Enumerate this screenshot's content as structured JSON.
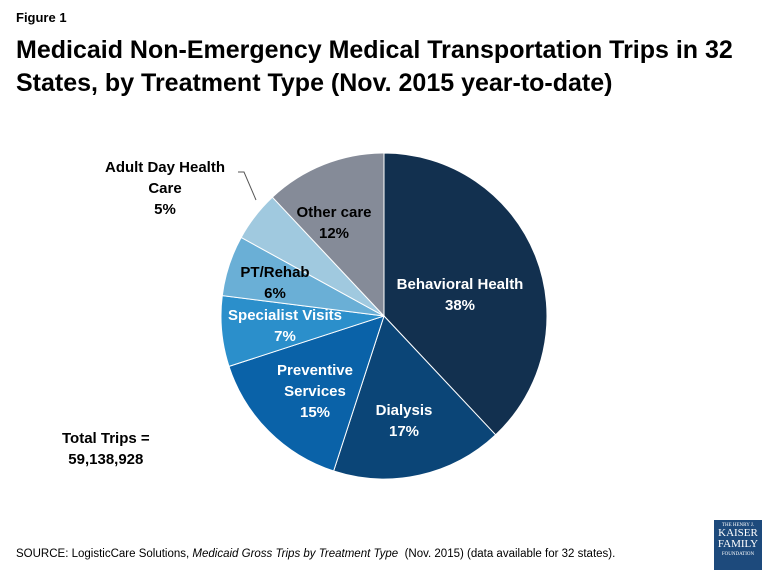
{
  "figure_label": "Figure 1",
  "title": "Medicaid Non-Emergency Medical Transportation Trips in 32 States, by Treatment Type (Nov. 2015 year-to-date)",
  "chart_data": {
    "type": "pie",
    "start": "12 o'clock, clockwise",
    "slices": [
      {
        "name": "Behavioral Health",
        "value": 38,
        "label": "38%",
        "color": "#12304f"
      },
      {
        "name": "Dialysis",
        "value": 17,
        "label": "17%",
        "color": "#0b4577"
      },
      {
        "name": "Preventive Services",
        "value": 15,
        "label": "15%",
        "color": "#0a62a8"
      },
      {
        "name": "Specialist Visits",
        "value": 7,
        "label": "7%",
        "color": "#2b8fcb"
      },
      {
        "name": "PT/Rehab",
        "value": 6,
        "label": "6%",
        "color": "#6aafd6"
      },
      {
        "name": "Adult Day Health Care",
        "value": 5,
        "label": "5%",
        "color": "#a0c9df"
      },
      {
        "name": "Other care",
        "value": 12,
        "label": "12%",
        "color": "#858b98"
      }
    ]
  },
  "total": {
    "line1": "Total Trips =",
    "line2": "59,138,928"
  },
  "source": {
    "prefix": "SOURCE: LogisticCare Solutions, ",
    "italic": "Medicaid Gross Trips by Treatment Type",
    "suffix": "  (Nov. 2015) (data available for 32 states)."
  },
  "logo": {
    "l1": "THE HENRY J.",
    "l2": "KAISER",
    "l3": "FAMILY",
    "l4": "FOUNDATION"
  }
}
